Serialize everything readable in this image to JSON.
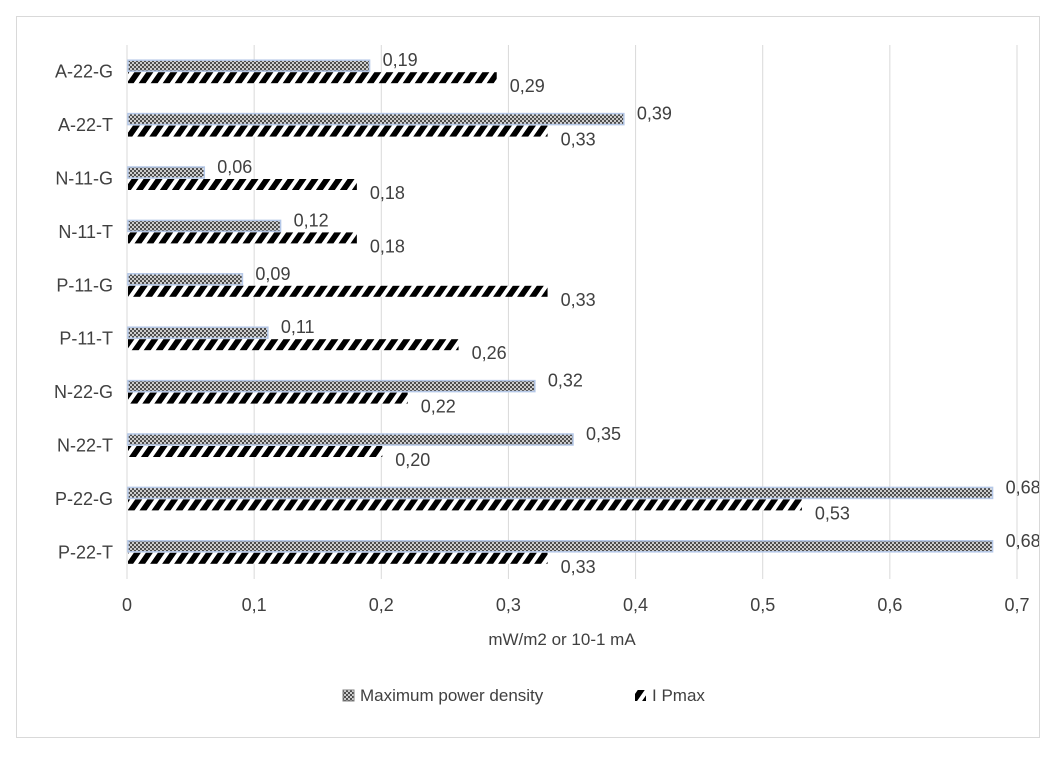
{
  "chart_data": {
    "type": "bar",
    "orientation": "horizontal",
    "categories": [
      "A-22-G",
      "A-22-T",
      "N-11-G",
      "N-11-T",
      "P-11-G",
      "P-11-T",
      "N-22-G",
      "N-22-T",
      "P-22-G",
      "P-22-T"
    ],
    "series": [
      {
        "name": "Maximum power density",
        "values": [
          0.19,
          0.39,
          0.06,
          0.12,
          0.09,
          0.11,
          0.32,
          0.35,
          0.68,
          0.68
        ],
        "labels": [
          "0,19",
          "0,39",
          "0,06",
          "0,12",
          "0,09",
          "0,11",
          "0,32",
          "0,35",
          "0,68",
          "0,68"
        ],
        "pattern": "crosshatch",
        "outline_color": "#b4c7e7"
      },
      {
        "name": "I Pmax",
        "values": [
          0.29,
          0.33,
          0.18,
          0.18,
          0.33,
          0.26,
          0.22,
          0.2,
          0.53,
          0.33
        ],
        "labels": [
          "0,29",
          "0,33",
          "0,18",
          "0,18",
          "0,33",
          "0,26",
          "0,22",
          "0,20",
          "0,53",
          "0,33"
        ],
        "pattern": "diagonal-dashes",
        "outline_color": "#000000"
      }
    ],
    "xlim": [
      0,
      0.7
    ],
    "x_ticks": [
      0,
      0.1,
      0.2,
      0.3,
      0.4,
      0.5,
      0.6,
      0.7
    ],
    "x_tick_labels": [
      "0",
      "0,1",
      "0,2",
      "0,3",
      "0,4",
      "0,5",
      "0,6",
      "0,7"
    ],
    "xlabel": "mW/m2 or 10-1 mA",
    "ylabel": "",
    "title": "",
    "grid": "vertical",
    "legend_position": "bottom"
  }
}
